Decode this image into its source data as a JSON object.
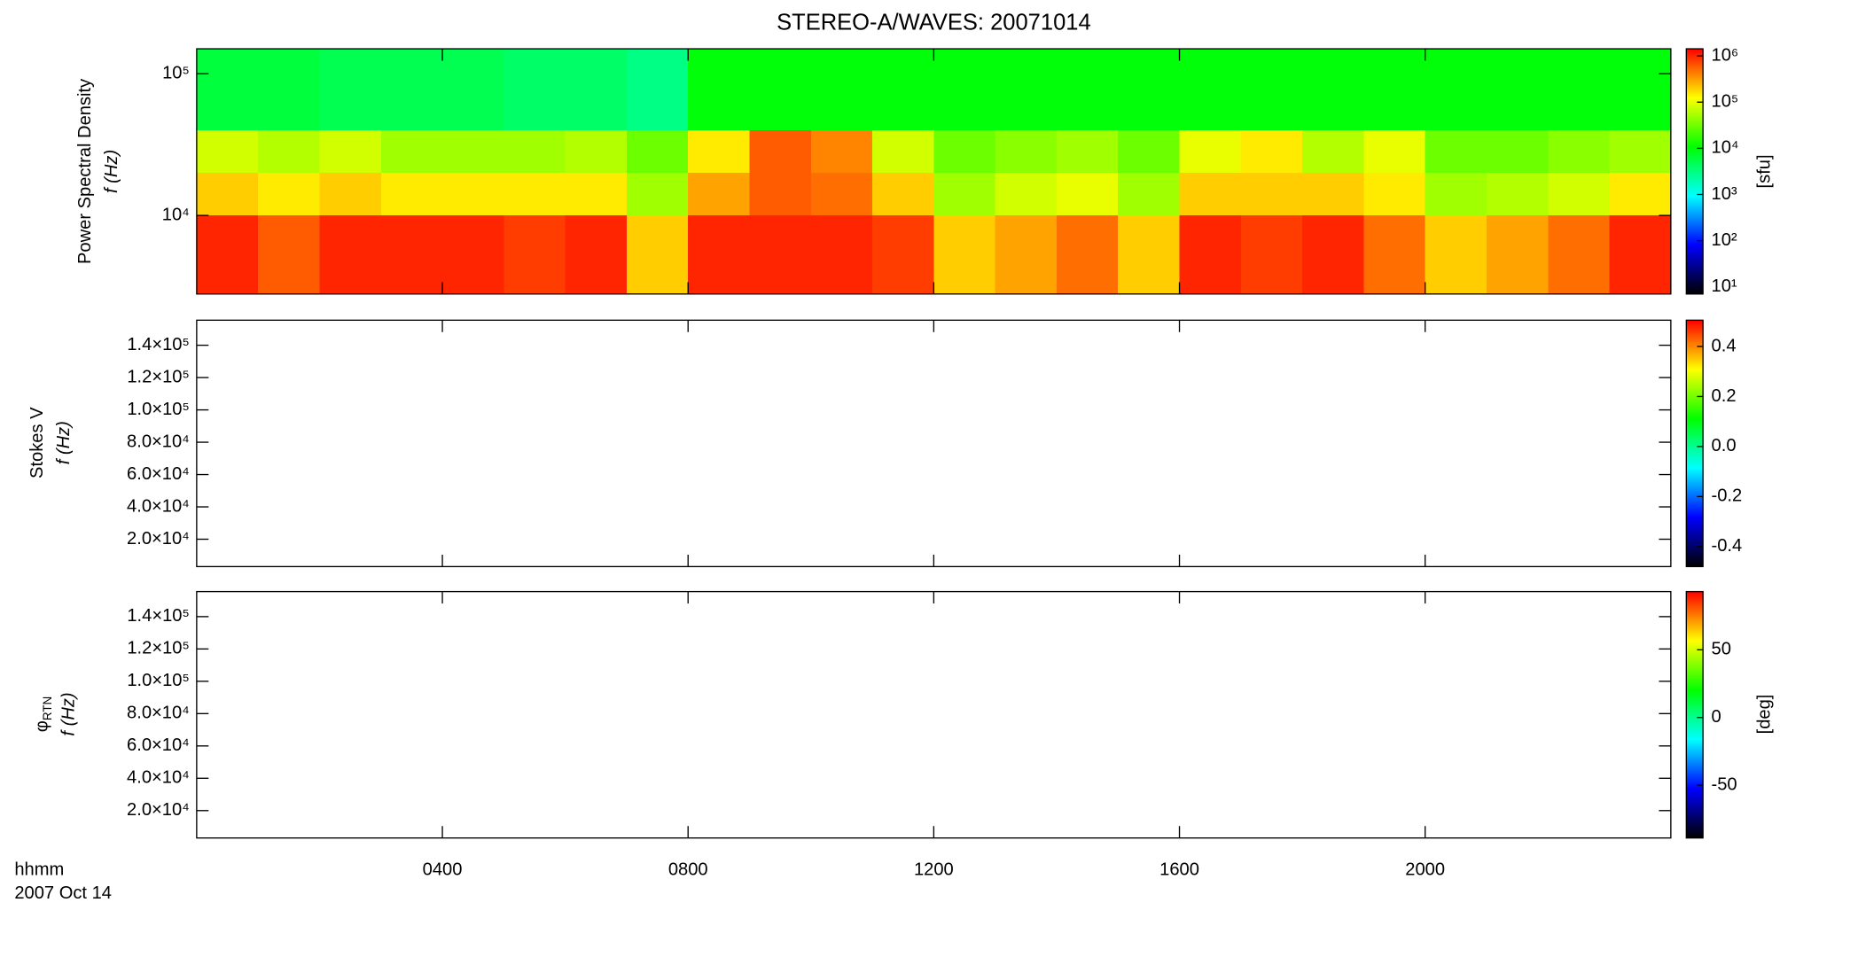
{
  "chart_data": [
    {
      "type": "heatmap",
      "title": "STEREO-A/WAVES: 20071014",
      "ylabel_top": "Power Spectral Density",
      "ylabel": "f (Hz)",
      "xlim": [
        0,
        24
      ],
      "xticks": [
        {
          "value": 4,
          "label": "0400"
        },
        {
          "value": 8,
          "label": "0800"
        },
        {
          "value": 12,
          "label": "1200"
        },
        {
          "value": 16,
          "label": "1600"
        },
        {
          "value": 20,
          "label": "2000"
        }
      ],
      "ylog": true,
      "ylim": [
        2790,
        150000
      ],
      "yticks": [
        {
          "value": 10000,
          "label": "10⁴"
        },
        {
          "value": 100000,
          "label": "10⁵"
        }
      ],
      "x_edges": [
        0,
        1,
        2,
        3,
        4,
        5,
        6,
        7,
        8,
        9,
        10,
        11,
        12,
        13,
        14,
        15,
        16,
        17,
        18,
        19,
        20,
        21,
        22,
        23,
        24
      ],
      "y_edges": [
        2790,
        10000,
        20000,
        40000,
        150000
      ],
      "z": [
        [
          1000000,
          600000,
          1000000,
          1000000,
          1000000,
          800000,
          1000000,
          200000,
          1000000,
          1000000,
          1000000,
          800000,
          200000,
          300000,
          500000,
          200000,
          1000000,
          800000,
          1000000,
          500000,
          200000,
          300000,
          500000,
          1000000
        ],
        [
          200000,
          150000,
          200000,
          150000,
          150000,
          150000,
          150000,
          50000,
          300000,
          600000,
          500000,
          200000,
          50000,
          80000,
          100000,
          50000,
          200000,
          200000,
          200000,
          150000,
          50000,
          60000,
          80000,
          150000
        ],
        [
          80000,
          60000,
          80000,
          50000,
          50000,
          50000,
          60000,
          30000,
          150000,
          600000,
          400000,
          80000,
          30000,
          40000,
          50000,
          30000,
          100000,
          150000,
          60000,
          100000,
          30000,
          30000,
          40000,
          50000
        ],
        [
          6000,
          6000,
          5000,
          5000,
          5000,
          4000,
          4000,
          3000,
          10000,
          10000,
          10000,
          10000,
          10000,
          10000,
          10000,
          10000,
          10000,
          10000,
          10000,
          10000,
          10000,
          10000,
          10000,
          10000
        ]
      ],
      "colorbar_label": "[sfu]",
      "clog": true,
      "clim": [
        7,
        1430000
      ],
      "cticks": [
        {
          "value": 10,
          "label": "10¹"
        },
        {
          "value": 100,
          "label": "10²"
        },
        {
          "value": 1000,
          "label": "10³"
        },
        {
          "value": 10000,
          "label": "10⁴"
        },
        {
          "value": 100000,
          "label": "10⁵"
        },
        {
          "value": 1000000,
          "label": "10⁶"
        }
      ],
      "colorscale": [
        "#000000",
        "#0000ff",
        "#00ffff",
        "#00ff00",
        "#ffff00",
        "#ff0000"
      ]
    },
    {
      "type": "heatmap",
      "ylabel_top": "Stokes V",
      "ylabel": "f (Hz)",
      "xlim": [
        0,
        24
      ],
      "xticks": [
        {
          "value": 4,
          "label": "0400"
        },
        {
          "value": 8,
          "label": "0800"
        },
        {
          "value": 12,
          "label": "1200"
        },
        {
          "value": 16,
          "label": "1600"
        },
        {
          "value": 20,
          "label": "2000"
        }
      ],
      "ylog": false,
      "ylim": [
        3060,
        155500
      ],
      "yticks": [
        {
          "value": 20000,
          "label": "2.0×10⁴"
        },
        {
          "value": 40000,
          "label": "4.0×10⁴"
        },
        {
          "value": 60000,
          "label": "6.0×10⁴"
        },
        {
          "value": 80000,
          "label": "8.0×10⁴"
        },
        {
          "value": 100000,
          "label": "1.0×10⁵"
        },
        {
          "value": 120000,
          "label": "1.2×10⁵"
        },
        {
          "value": 140000,
          "label": "1.4×10⁵"
        }
      ],
      "clog": false,
      "clim": [
        -0.48,
        0.505
      ],
      "cticks": [
        {
          "value": -0.4,
          "label": "-0.4"
        },
        {
          "value": -0.2,
          "label": "-0.2"
        },
        {
          "value": 0,
          "label": "0.0"
        },
        {
          "value": 0.2,
          "label": "0.2"
        },
        {
          "value": 0.4,
          "label": "0.4"
        }
      ],
      "colorscale": [
        "#000000",
        "#0000ff",
        "#00ffff",
        "#00ff00",
        "#ffff00",
        "#ff0000"
      ]
    },
    {
      "type": "heatmap",
      "ylabel_top": "φ",
      "ylabel_top_sub": "RTN",
      "ylabel": "f (Hz)",
      "xlim": [
        0,
        24
      ],
      "xticks": [
        {
          "value": 4,
          "label": "0400"
        },
        {
          "value": 8,
          "label": "0800"
        },
        {
          "value": 12,
          "label": "1200"
        },
        {
          "value": 16,
          "label": "1600"
        },
        {
          "value": 20,
          "label": "2000"
        }
      ],
      "x_unit_label": "hhmm",
      "date_label": "2007 Oct 14",
      "ylog": false,
      "ylim": [
        3060,
        155500
      ],
      "yticks": [
        {
          "value": 20000,
          "label": "2.0×10⁴"
        },
        {
          "value": 40000,
          "label": "4.0×10⁴"
        },
        {
          "value": 60000,
          "label": "6.0×10⁴"
        },
        {
          "value": 80000,
          "label": "8.0×10⁴"
        },
        {
          "value": 100000,
          "label": "1.0×10⁵"
        },
        {
          "value": 120000,
          "label": "1.2×10⁵"
        },
        {
          "value": 140000,
          "label": "1.4×10⁵"
        }
      ],
      "colorbar_label": "[deg]",
      "clog": false,
      "clim": [
        -89,
        93
      ],
      "cticks": [
        -50,
        0,
        50
      ],
      "colorscale": [
        "#000000",
        "#0000ff",
        "#00ffff",
        "#00ff00",
        "#ffff00",
        "#ff0000"
      ]
    }
  ]
}
